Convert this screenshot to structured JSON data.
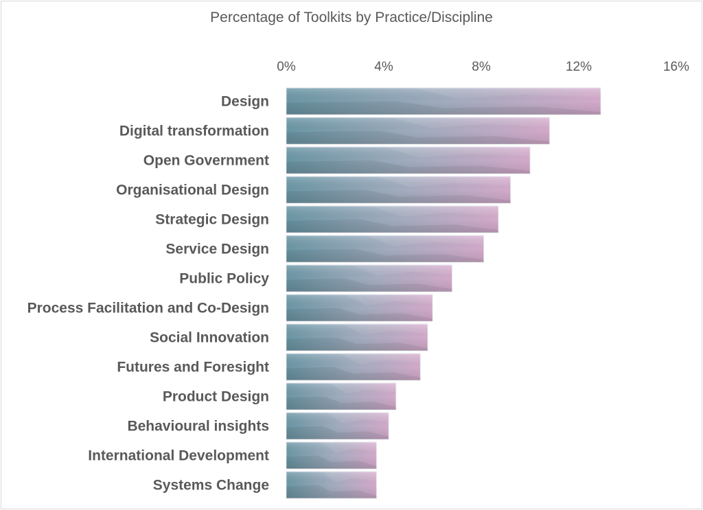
{
  "chart_data": {
    "type": "bar",
    "orientation": "horizontal",
    "title": "Percentage of Toolkits by Practice/Discipline",
    "xlabel": "",
    "ylabel": "",
    "xlim": [
      0,
      16
    ],
    "x_ticks": [
      "0%",
      "4%",
      "8%",
      "12%",
      "16%"
    ],
    "x_tick_values": [
      0,
      4,
      8,
      12,
      16
    ],
    "x_axis_position": "top",
    "grid": false,
    "legend": "none",
    "categories": [
      "Design",
      "Digital transformation",
      "Open Government",
      "Organisational Design",
      "Strategic Design",
      "Service Design",
      "Public Policy",
      "Process Facilitation and Co-Design",
      "Social Innovation",
      "Futures and Foresight",
      "Product Design",
      "Behavioural insights",
      "International Development",
      "Systems Change"
    ],
    "values": [
      12.9,
      10.8,
      10.0,
      9.2,
      8.7,
      8.1,
      6.8,
      6.0,
      5.8,
      5.5,
      4.5,
      4.2,
      3.7,
      3.7
    ],
    "unit": "%",
    "colors": {
      "gradient_start": "#6f9cab",
      "gradient_mid": "#a7b3c6",
      "gradient_end": "#dcb0d2",
      "text": "#595959"
    }
  }
}
